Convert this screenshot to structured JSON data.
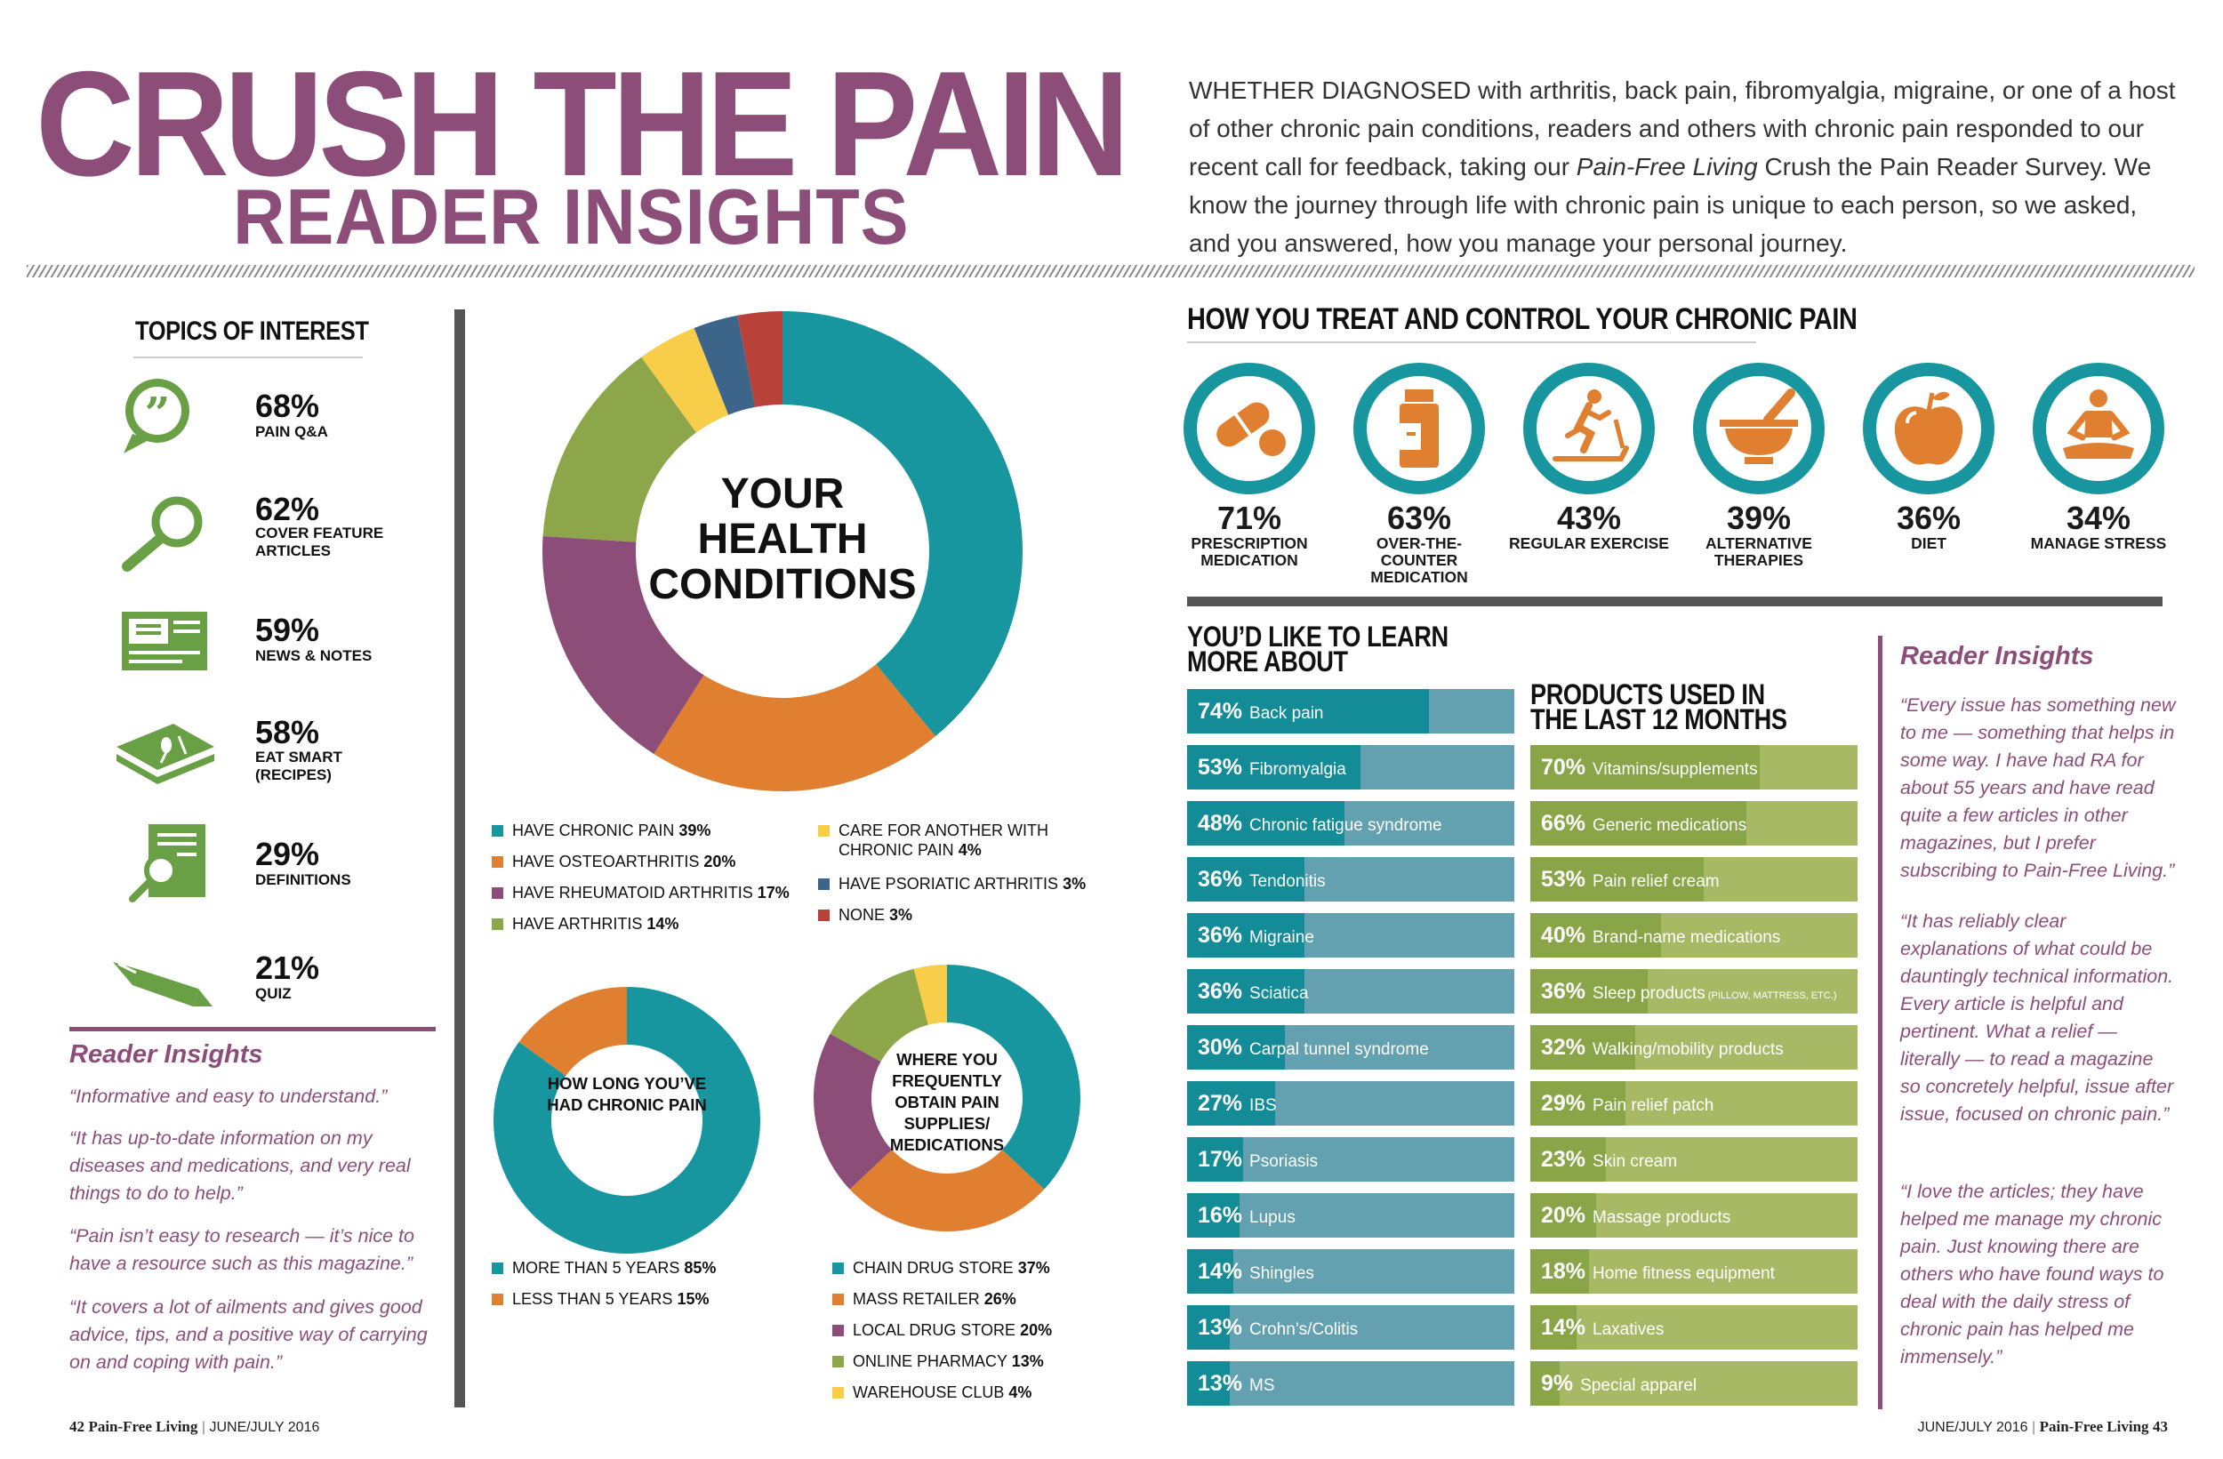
{
  "header": {
    "title": "CRUSH THE PAIN",
    "subtitle": "READER INSIGHTS",
    "intro_before": "WHETHER DIAGNOSED with arthritis, back pain, fibromyalgia, migraine, or one of a host of other chronic pain conditions, readers and others with chronic pain responded to our recent call for feedback, taking our ",
    "intro_italic": "Pain-Free Living",
    "intro_after": " Crush the Pain Reader Survey. We know the journey through life with chronic pain is unique to each person, so we asked, and you answered, how you manage your personal journey."
  },
  "topics": {
    "heading": "TOPICS OF INTEREST",
    "items": [
      {
        "pct": "68%",
        "label": "PAIN Q&A",
        "icon": "speech-bubble-icon"
      },
      {
        "pct": "62%",
        "label": "COVER FEATURE ARTICLES",
        "icon": "magnifier-icon"
      },
      {
        "pct": "59%",
        "label": "NEWS & NOTES",
        "icon": "newspaper-icon"
      },
      {
        "pct": "58%",
        "label": "EAT SMART (RECIPES)",
        "icon": "cookbook-icon"
      },
      {
        "pct": "29%",
        "label": "DEFINITIONS",
        "icon": "document-search-icon"
      },
      {
        "pct": "21%",
        "label": "QUIZ",
        "icon": "pen-icon"
      }
    ]
  },
  "insights_left": {
    "heading": "Reader Insights",
    "quotes": [
      "“Informative and easy to understand.”",
      "“It has up-to-date information on my diseases and medications, and very real things to do to help.”",
      "“Pain isn’t easy to research — it’s nice to have a resource such as this magazine.”",
      "“It covers a lot of ailments and gives good advice, tips, and a positive way of carrying on and coping with pain.”"
    ]
  },
  "health_conditions": {
    "center_line1": "YOUR",
    "center_line2": "HEALTH",
    "center_line3": "CONDITIONS",
    "legend": [
      {
        "label": "HAVE CHRONIC PAIN",
        "pct": "39%"
      },
      {
        "label": "HAVE OSTEOARTHRITIS",
        "pct": "20%"
      },
      {
        "label": "HAVE RHEUMATOID ARTHRITIS",
        "pct": "17%"
      },
      {
        "label": "HAVE ARTHRITIS",
        "pct": "14%"
      },
      {
        "label": "CARE FOR ANOTHER WITH CHRONIC PAIN",
        "pct": "4%"
      },
      {
        "label": "HAVE PSORIATIC ARTHRITIS",
        "pct": "3%"
      },
      {
        "label": "NONE",
        "pct": "3%"
      }
    ]
  },
  "how_long": {
    "center": "HOW LONG YOU’VE HAD CHRONIC PAIN",
    "legend": [
      {
        "label": "MORE THAN 5 YEARS",
        "pct": "85%"
      },
      {
        "label": "LESS THAN 5 YEARS",
        "pct": "15%"
      }
    ]
  },
  "where_obtain": {
    "center": "WHERE YOU FREQUENTLY OBTAIN PAIN SUPPLIES/ MEDICATIONS",
    "legend": [
      {
        "label": "CHAIN DRUG STORE",
        "pct": "37%"
      },
      {
        "label": "MASS RETAILER",
        "pct": "26%"
      },
      {
        "label": "LOCAL DRUG STORE",
        "pct": "20%"
      },
      {
        "label": "ONLINE PHARMACY",
        "pct": "13%"
      },
      {
        "label": "WAREHOUSE CLUB",
        "pct": "4%"
      }
    ]
  },
  "chart_data": [
    {
      "type": "pie",
      "title": "YOUR HEALTH CONDITIONS",
      "categories": [
        "HAVE CHRONIC PAIN",
        "HAVE OSTEOARTHRITIS",
        "HAVE RHEUMATOID ARTHRITIS",
        "HAVE ARTHRITIS",
        "CARE FOR ANOTHER WITH CHRONIC PAIN",
        "HAVE PSORIATIC ARTHRITIS",
        "NONE"
      ],
      "values": [
        39,
        20,
        17,
        14,
        4,
        3,
        3
      ],
      "colors": [
        "#17969f",
        "#e07f30",
        "#8c4e79",
        "#8da64a",
        "#f8cd4a",
        "#3d6489",
        "#b8413a"
      ]
    },
    {
      "type": "pie",
      "title": "HOW LONG YOU’VE HAD CHRONIC PAIN",
      "categories": [
        "MORE THAN 5 YEARS",
        "LESS THAN 5 YEARS"
      ],
      "values": [
        85,
        15
      ],
      "colors": [
        "#17969f",
        "#e07f30"
      ]
    },
    {
      "type": "pie",
      "title": "WHERE YOU FREQUENTLY OBTAIN PAIN SUPPLIES/ MEDICATIONS",
      "categories": [
        "CHAIN DRUG STORE",
        "MASS RETAILER",
        "LOCAL DRUG STORE",
        "ONLINE PHARMACY",
        "WAREHOUSE CLUB"
      ],
      "values": [
        37,
        26,
        20,
        13,
        4
      ],
      "colors": [
        "#17969f",
        "#e07f30",
        "#8c4e79",
        "#8da64a",
        "#f8cd4a"
      ]
    },
    {
      "type": "bar",
      "title": "YOU’D LIKE TO LEARN MORE ABOUT",
      "categories": [
        "Back pain",
        "Fibromyalgia",
        "Chronic fatigue syndrome",
        "Tendonitis",
        "Migraine",
        "Sciatica",
        "Carpal tunnel syndrome",
        "IBS",
        "Psoriasis",
        "Lupus",
        "Shingles",
        "Crohn’s/Colitis",
        "MS"
      ],
      "values": [
        74,
        53,
        48,
        36,
        36,
        36,
        30,
        27,
        17,
        16,
        14,
        13,
        13
      ]
    },
    {
      "type": "bar",
      "title": "PRODUCTS USED IN THE LAST 12 MONTHS",
      "categories": [
        "Vitamins/supplements",
        "Generic medications",
        "Pain relief cream",
        "Brand-name medications",
        "Sleep products",
        "Walking/mobility products",
        "Pain relief patch",
        "Skin cream",
        "Massage products",
        "Home fitness equipment",
        "Laxatives",
        "Special apparel"
      ],
      "values": [
        70,
        66,
        53,
        40,
        36,
        32,
        29,
        23,
        20,
        18,
        14,
        9
      ]
    }
  ],
  "treat": {
    "heading": "HOW YOU TREAT AND CONTROL YOUR CHRONIC PAIN",
    "items": [
      {
        "pct": "71%",
        "label": "PRESCRIPTION MEDICATION",
        "icon": "pill-icon"
      },
      {
        "pct": "63%",
        "label": "OVER-THE-COUNTER MEDICATION",
        "icon": "medicine-bottle-icon"
      },
      {
        "pct": "43%",
        "label": "REGULAR EXERCISE",
        "icon": "treadmill-icon"
      },
      {
        "pct": "39%",
        "label": "ALTERNATIVE THERAPIES",
        "icon": "mortar-pestle-icon"
      },
      {
        "pct": "36%",
        "label": "DIET",
        "icon": "apple-icon"
      },
      {
        "pct": "34%",
        "label": "MANAGE STRESS",
        "icon": "meditation-icon"
      }
    ]
  },
  "learn": {
    "heading_line1": "YOU’D LIKE TO LEARN",
    "heading_line2": "MORE ABOUT",
    "items": [
      {
        "pct": "74%",
        "label": "Back pain",
        "value": 74
      },
      {
        "pct": "53%",
        "label": "Fibromyalgia",
        "value": 53
      },
      {
        "pct": "48%",
        "label": "Chronic fatigue syndrome",
        "value": 48
      },
      {
        "pct": "36%",
        "label": "Tendonitis",
        "value": 36
      },
      {
        "pct": "36%",
        "label": "Migraine",
        "value": 36
      },
      {
        "pct": "36%",
        "label": "Sciatica",
        "value": 36
      },
      {
        "pct": "30%",
        "label": "Carpal tunnel syndrome",
        "value": 30
      },
      {
        "pct": "27%",
        "label": "IBS",
        "value": 27
      },
      {
        "pct": "17%",
        "label": "Psoriasis",
        "value": 17
      },
      {
        "pct": "16%",
        "label": "Lupus",
        "value": 16
      },
      {
        "pct": "14%",
        "label": "Shingles",
        "value": 14
      },
      {
        "pct": "13%",
        "label": "Crohn’s/Colitis",
        "value": 13
      },
      {
        "pct": "13%",
        "label": "MS",
        "value": 13
      }
    ]
  },
  "products": {
    "heading_line1": "PRODUCTS USED IN",
    "heading_line2": "THE LAST 12 MONTHS",
    "items": [
      {
        "pct": "70%",
        "label": "Vitamins/supplements",
        "note": "",
        "value": 70
      },
      {
        "pct": "66%",
        "label": "Generic medications",
        "note": "",
        "value": 66
      },
      {
        "pct": "53%",
        "label": "Pain relief cream",
        "note": "",
        "value": 53
      },
      {
        "pct": "40%",
        "label": "Brand-name medications",
        "note": "",
        "value": 40
      },
      {
        "pct": "36%",
        "label": "Sleep products",
        "note": "(PILLOW, MATTRESS, ETC.)",
        "value": 36
      },
      {
        "pct": "32%",
        "label": "Walking/mobility products",
        "note": "",
        "value": 32
      },
      {
        "pct": "29%",
        "label": "Pain relief patch",
        "note": "",
        "value": 29
      },
      {
        "pct": "23%",
        "label": "Skin cream",
        "note": "",
        "value": 23
      },
      {
        "pct": "20%",
        "label": "Massage products",
        "note": "",
        "value": 20
      },
      {
        "pct": "18%",
        "label": "Home fitness equipment",
        "note": "",
        "value": 18
      },
      {
        "pct": "14%",
        "label": "Laxatives",
        "note": "",
        "value": 14
      },
      {
        "pct": "9%",
        "label": "Special apparel",
        "note": "",
        "value": 9
      }
    ]
  },
  "insights_right": {
    "heading": "Reader Insights",
    "quotes": [
      "“Every issue has something new to me — something that helps in some way. I have had RA for about 55 years and have read quite a few articles in other magazines, but I prefer subscribing to Pain-Free Living.”",
      "“It has reliably clear explanations of what could be dauntingly technical information. Every article is helpful and pertinent. What a relief — literally — to read a magazine so concretely helpful, issue after issue, focused on chronic pain.”",
      "“I love the articles; they have helped me manage my chronic pain. Just knowing there are others who have found ways to deal with the daily stress of chronic pain has helped me immensely.”"
    ]
  },
  "footer": {
    "left_page": "42",
    "left_brand": "Pain-Free Living",
    "left_date": "JUNE/JULY 2016",
    "right_date": "JUNE/JULY 2016",
    "right_brand": "Pain-Free Living",
    "right_page": "43",
    "sep": "|"
  },
  "colors": {
    "purple": "#8c4e79",
    "teal": "#17969f",
    "teal_light": "#63a1b0",
    "orange": "#e07f30",
    "green": "#8da64a",
    "green_light": "#a8b966",
    "yellow": "#f8cd4a",
    "navy": "#3d6489",
    "red": "#b8413a",
    "icon_green": "#6aa045"
  }
}
